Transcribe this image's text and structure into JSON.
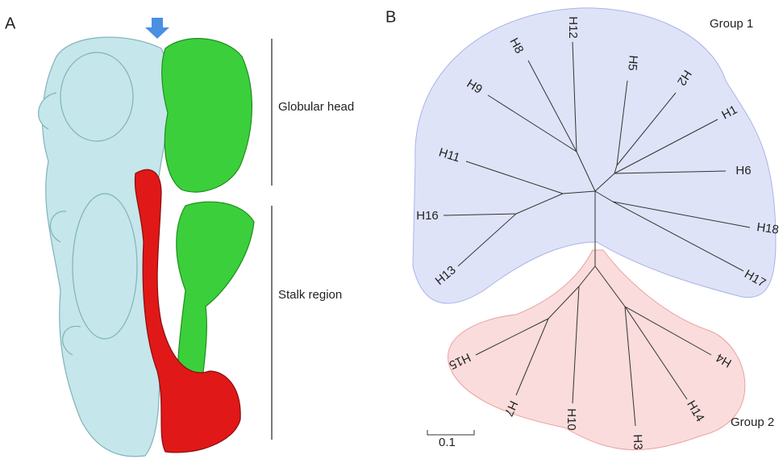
{
  "panel_a": {
    "label": "A",
    "annotations": [
      "Globular head",
      "Stalk region"
    ]
  },
  "panel_b": {
    "label": "B",
    "groups": [
      "Group 1",
      "Group 2"
    ],
    "leaves": [
      "H12",
      "H8",
      "H5",
      "H2",
      "H9",
      "H1",
      "H11",
      "H6",
      "H16",
      "H18",
      "H13",
      "H17",
      "H15",
      "H4",
      "H7",
      "H14",
      "H10",
      "H3"
    ],
    "scale_bar": 0.1
  }
}
